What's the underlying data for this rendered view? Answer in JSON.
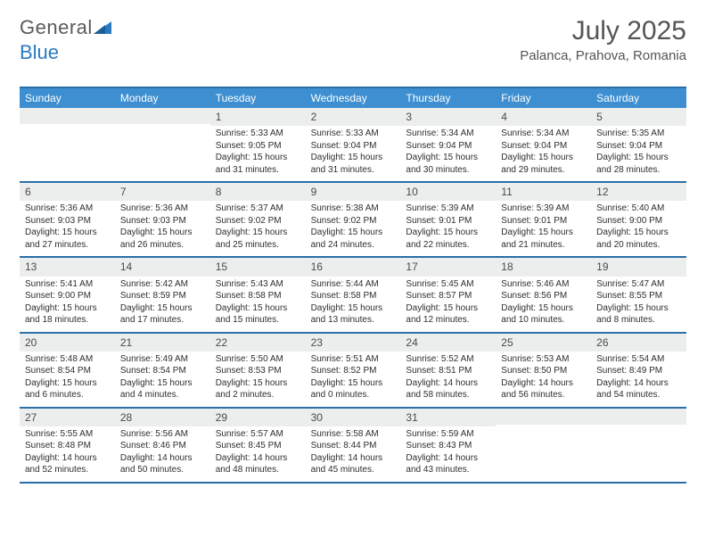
{
  "logo": {
    "text1": "General",
    "text2": "Blue"
  },
  "title": "July 2025",
  "location": "Palanca, Prahova, Romania",
  "colors": {
    "header_bg": "#3d8fd1",
    "header_text": "#ffffff",
    "rule": "#2a6fa8",
    "daynum_bg": "#eceded",
    "body_text": "#2e2e2e",
    "title_text": "#555555"
  },
  "day_labels": [
    "Sunday",
    "Monday",
    "Tuesday",
    "Wednesday",
    "Thursday",
    "Friday",
    "Saturday"
  ],
  "weeks": [
    [
      null,
      null,
      {
        "n": "1",
        "sr": "5:33 AM",
        "ss": "9:05 PM",
        "dl": "15 hours and 31 minutes."
      },
      {
        "n": "2",
        "sr": "5:33 AM",
        "ss": "9:04 PM",
        "dl": "15 hours and 31 minutes."
      },
      {
        "n": "3",
        "sr": "5:34 AM",
        "ss": "9:04 PM",
        "dl": "15 hours and 30 minutes."
      },
      {
        "n": "4",
        "sr": "5:34 AM",
        "ss": "9:04 PM",
        "dl": "15 hours and 29 minutes."
      },
      {
        "n": "5",
        "sr": "5:35 AM",
        "ss": "9:04 PM",
        "dl": "15 hours and 28 minutes."
      }
    ],
    [
      {
        "n": "6",
        "sr": "5:36 AM",
        "ss": "9:03 PM",
        "dl": "15 hours and 27 minutes."
      },
      {
        "n": "7",
        "sr": "5:36 AM",
        "ss": "9:03 PM",
        "dl": "15 hours and 26 minutes."
      },
      {
        "n": "8",
        "sr": "5:37 AM",
        "ss": "9:02 PM",
        "dl": "15 hours and 25 minutes."
      },
      {
        "n": "9",
        "sr": "5:38 AM",
        "ss": "9:02 PM",
        "dl": "15 hours and 24 minutes."
      },
      {
        "n": "10",
        "sr": "5:39 AM",
        "ss": "9:01 PM",
        "dl": "15 hours and 22 minutes."
      },
      {
        "n": "11",
        "sr": "5:39 AM",
        "ss": "9:01 PM",
        "dl": "15 hours and 21 minutes."
      },
      {
        "n": "12",
        "sr": "5:40 AM",
        "ss": "9:00 PM",
        "dl": "15 hours and 20 minutes."
      }
    ],
    [
      {
        "n": "13",
        "sr": "5:41 AM",
        "ss": "9:00 PM",
        "dl": "15 hours and 18 minutes."
      },
      {
        "n": "14",
        "sr": "5:42 AM",
        "ss": "8:59 PM",
        "dl": "15 hours and 17 minutes."
      },
      {
        "n": "15",
        "sr": "5:43 AM",
        "ss": "8:58 PM",
        "dl": "15 hours and 15 minutes."
      },
      {
        "n": "16",
        "sr": "5:44 AM",
        "ss": "8:58 PM",
        "dl": "15 hours and 13 minutes."
      },
      {
        "n": "17",
        "sr": "5:45 AM",
        "ss": "8:57 PM",
        "dl": "15 hours and 12 minutes."
      },
      {
        "n": "18",
        "sr": "5:46 AM",
        "ss": "8:56 PM",
        "dl": "15 hours and 10 minutes."
      },
      {
        "n": "19",
        "sr": "5:47 AM",
        "ss": "8:55 PM",
        "dl": "15 hours and 8 minutes."
      }
    ],
    [
      {
        "n": "20",
        "sr": "5:48 AM",
        "ss": "8:54 PM",
        "dl": "15 hours and 6 minutes."
      },
      {
        "n": "21",
        "sr": "5:49 AM",
        "ss": "8:54 PM",
        "dl": "15 hours and 4 minutes."
      },
      {
        "n": "22",
        "sr": "5:50 AM",
        "ss": "8:53 PM",
        "dl": "15 hours and 2 minutes."
      },
      {
        "n": "23",
        "sr": "5:51 AM",
        "ss": "8:52 PM",
        "dl": "15 hours and 0 minutes."
      },
      {
        "n": "24",
        "sr": "5:52 AM",
        "ss": "8:51 PM",
        "dl": "14 hours and 58 minutes."
      },
      {
        "n": "25",
        "sr": "5:53 AM",
        "ss": "8:50 PM",
        "dl": "14 hours and 56 minutes."
      },
      {
        "n": "26",
        "sr": "5:54 AM",
        "ss": "8:49 PM",
        "dl": "14 hours and 54 minutes."
      }
    ],
    [
      {
        "n": "27",
        "sr": "5:55 AM",
        "ss": "8:48 PM",
        "dl": "14 hours and 52 minutes."
      },
      {
        "n": "28",
        "sr": "5:56 AM",
        "ss": "8:46 PM",
        "dl": "14 hours and 50 minutes."
      },
      {
        "n": "29",
        "sr": "5:57 AM",
        "ss": "8:45 PM",
        "dl": "14 hours and 48 minutes."
      },
      {
        "n": "30",
        "sr": "5:58 AM",
        "ss": "8:44 PM",
        "dl": "14 hours and 45 minutes."
      },
      {
        "n": "31",
        "sr": "5:59 AM",
        "ss": "8:43 PM",
        "dl": "14 hours and 43 minutes."
      },
      null,
      null
    ]
  ],
  "labels": {
    "sunrise": "Sunrise:",
    "sunset": "Sunset:",
    "daylight": "Daylight:"
  }
}
